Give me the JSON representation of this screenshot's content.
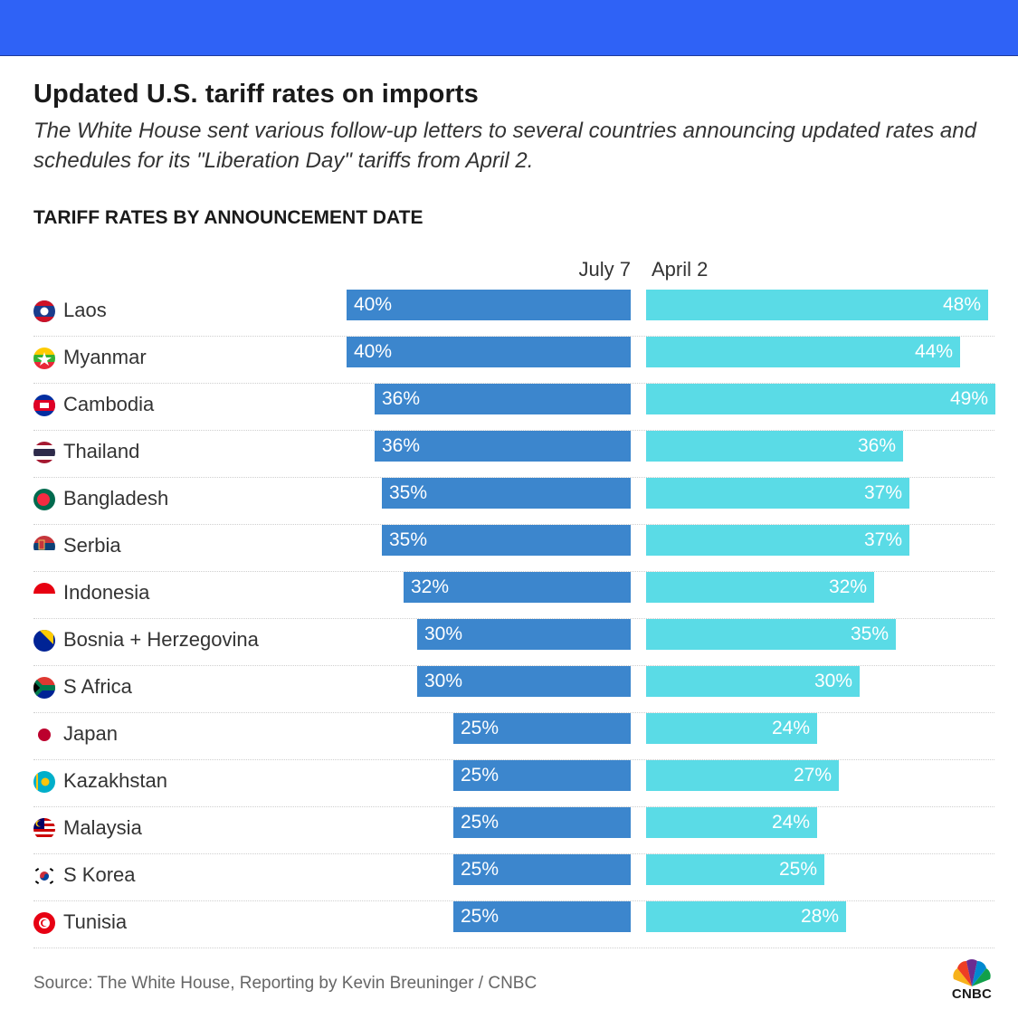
{
  "title": "Updated U.S. tariff rates on imports",
  "subtitle": "The White House sent various follow-up letters to several countries announcing updated rates and schedules for its \"Liberation Day\" tariffs from April 2.",
  "section_label": "TARIFF RATES BY ANNOUNCEMENT DATE",
  "source": "Source: The White House, Reporting by Kevin Breuninger / CNBC",
  "logo_text": "CNBC",
  "colors": {
    "banner": "#2f62f6",
    "july": "#3c86cd",
    "april": "#5adbe6"
  },
  "chart_data": {
    "type": "bar",
    "title": "TARIFF RATES BY ANNOUNCEMENT DATE",
    "orientation": "horizontal-diverging",
    "categories": [
      "Laos",
      "Myanmar",
      "Cambodia",
      "Thailand",
      "Bangladesh",
      "Serbia",
      "Indonesia",
      "Bosnia + Herzegovina",
      "S Africa",
      "Japan",
      "Kazakhstan",
      "Malaysia",
      "S Korea",
      "Tunisia"
    ],
    "flag_icons": [
      "laos-flag-icon",
      "myanmar-flag-icon",
      "cambodia-flag-icon",
      "thailand-flag-icon",
      "bangladesh-flag-icon",
      "serbia-flag-icon",
      "indonesia-flag-icon",
      "bosnia-flag-icon",
      "south-africa-flag-icon",
      "japan-flag-icon",
      "kazakhstan-flag-icon",
      "malaysia-flag-icon",
      "south-korea-flag-icon",
      "tunisia-flag-icon"
    ],
    "series": [
      {
        "name": "July 7",
        "values": [
          40,
          40,
          36,
          36,
          35,
          35,
          32,
          30,
          30,
          25,
          25,
          25,
          25,
          25
        ],
        "labels": [
          "40%",
          "40%",
          "36%",
          "36%",
          "35%",
          "35%",
          "32%",
          "30%",
          "30%",
          "25%",
          "25%",
          "25%",
          "25%",
          "25%"
        ]
      },
      {
        "name": "April 2",
        "values": [
          48,
          44,
          49,
          36,
          37,
          37,
          32,
          35,
          30,
          24,
          27,
          24,
          25,
          28
        ],
        "labels": [
          "48%",
          "44%",
          "49%",
          "36%",
          "37%",
          "37%",
          "32%",
          "35%",
          "30%",
          "24%",
          "27%",
          "24%",
          "25%",
          "28%"
        ]
      }
    ],
    "xlim": [
      0,
      49
    ],
    "grid": false,
    "legend": "column headers above bars"
  }
}
